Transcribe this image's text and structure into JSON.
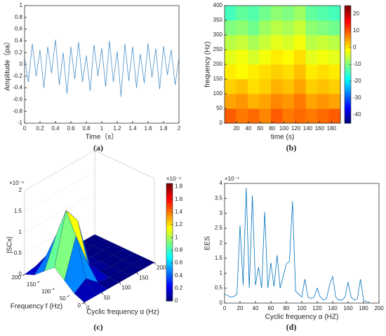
{
  "chart_data": [
    {
      "type": "line",
      "caption": "(a)",
      "xlabel": "Time（s）",
      "ylabel": "Amplitude（pa）",
      "color": "#4a90c8",
      "x": [
        0,
        0.05,
        0.1,
        0.15,
        0.2,
        0.25,
        0.3,
        0.35,
        0.4,
        0.45,
        0.5,
        0.55,
        0.6,
        0.65,
        0.7,
        0.75,
        0.8,
        0.85,
        0.9,
        0.95,
        1,
        1.05,
        1.1,
        1.15,
        1.2,
        1.25,
        1.3,
        1.35,
        1.4,
        1.45,
        1.5,
        1.55,
        1.6,
        1.65,
        1.7,
        1.75,
        1.8,
        1.85,
        1.9,
        1.95,
        2
      ],
      "values": [
        0.1,
        -0.3,
        0.35,
        -0.2,
        0.25,
        -0.4,
        0.3,
        -0.15,
        0.42,
        -0.35,
        0.2,
        -0.5,
        0.3,
        -0.25,
        0.38,
        -0.3,
        0.15,
        -0.45,
        0.33,
        -0.2,
        0.28,
        -0.38,
        0.4,
        -0.3,
        0.22,
        -0.55,
        0.35,
        -0.28,
        0.3,
        -0.4,
        0.18,
        -0.32,
        0.36,
        -0.22,
        0.27,
        -0.42,
        0.31,
        -0.18,
        0.25,
        -0.35,
        0.1
      ],
      "xlim": [
        0,
        2
      ],
      "xticks": [
        0,
        0.2,
        0.4,
        0.6,
        0.8,
        1,
        1.2,
        1.4,
        1.6,
        1.8,
        2
      ],
      "ylim": [
        -1,
        1
      ],
      "yticks": [
        -1,
        -0.8,
        -0.6,
        -0.4,
        -0.2,
        0,
        0.2,
        0.4,
        0.6,
        0.8,
        1
      ]
    },
    {
      "type": "heatmap",
      "caption": "(b)",
      "xlabel": "time (s)",
      "ylabel": "frequency (Hz)",
      "values": [
        [
          10,
          8,
          9,
          7,
          10,
          8,
          9,
          8,
          9,
          10
        ],
        [
          5,
          6,
          4,
          5,
          7,
          6,
          8,
          5,
          6,
          5
        ],
        [
          2,
          3,
          1,
          2,
          4,
          3,
          5,
          2,
          3,
          2
        ],
        [
          0,
          -1,
          0,
          1,
          2,
          1,
          3,
          0,
          1,
          0
        ],
        [
          -3,
          -2,
          -4,
          -2,
          0,
          -1,
          1,
          -3,
          -2,
          -3
        ],
        [
          -6,
          -5,
          -7,
          -5,
          -3,
          -4,
          -2,
          -6,
          -5,
          -6
        ],
        [
          -10,
          -9,
          -11,
          -8,
          -6,
          -7,
          -5,
          -9,
          -10,
          -11
        ],
        [
          -14,
          -12,
          -13,
          -11,
          -9,
          -10,
          -8,
          -12,
          -13,
          -14
        ]
      ],
      "xlim": [
        0,
        195
      ],
      "xticks": [
        20,
        40,
        60,
        80,
        100,
        120,
        140,
        160,
        180
      ],
      "ylim": [
        0,
        400
      ],
      "yticks": [
        0,
        50,
        100,
        150,
        200,
        250,
        300,
        350,
        400
      ],
      "clim": [
        -45,
        25
      ],
      "cticks": [
        -40,
        -30,
        -20,
        -10,
        0,
        10,
        20
      ]
    },
    {
      "type": "surface3d",
      "caption": "(c)",
      "xlabel": "Cyclic frequency α (Hz)",
      "ylabel": "Frequency f (Hz)",
      "zlabel": "|SCx|",
      "multiplier": "×10⁻⁴",
      "colorbar_multiplier": "×10⁻⁴",
      "values": [
        [
          0,
          0,
          0,
          0,
          0,
          0,
          0
        ],
        [
          0.1,
          0.3,
          0.05,
          0,
          0,
          0,
          0
        ],
        [
          0.3,
          1.2,
          0.4,
          0.05,
          0,
          0,
          0
        ],
        [
          0.5,
          1.7,
          1.3,
          0.1,
          0,
          0,
          0
        ],
        [
          0.3,
          1,
          1.4,
          0.1,
          0,
          0,
          0
        ],
        [
          0.1,
          0.4,
          0.3,
          0.02,
          0,
          0,
          0
        ],
        [
          0,
          0.05,
          0,
          0,
          0,
          0,
          0
        ]
      ],
      "xlim": [
        0,
        200
      ],
      "xticks": [
        0,
        50,
        100,
        150,
        200
      ],
      "ylim": [
        0,
        200
      ],
      "yticks": [
        0,
        50,
        100,
        150,
        200
      ],
      "zlim": [
        0,
        2
      ],
      "zticks": [
        0,
        0.5,
        1,
        1.5,
        2
      ],
      "clim": [
        0,
        1.85
      ],
      "cticks": [
        0,
        0.2,
        0.4,
        0.6,
        0.8,
        1,
        1.2,
        1.4,
        1.6,
        1.8
      ]
    },
    {
      "type": "line",
      "caption": "(d)",
      "xlabel": "Cyclic frequency α (HZ)",
      "ylabel": "EES",
      "multiplier": "×10⁻⁴",
      "color": "#0072bd",
      "x": [
        0,
        4,
        8,
        12,
        16,
        20,
        24,
        28,
        32,
        36,
        40,
        44,
        48,
        52,
        56,
        60,
        64,
        68,
        72,
        76,
        80,
        84,
        88,
        92,
        96,
        100,
        104,
        108,
        112,
        116,
        120,
        124,
        128,
        132,
        136,
        140,
        144,
        148,
        152,
        156,
        160,
        164,
        168,
        172,
        176,
        180,
        184,
        188
      ],
      "values": [
        0.3,
        0.25,
        0.2,
        0.22,
        0.3,
        2.6,
        0.6,
        3.85,
        0.5,
        3.6,
        0.6,
        1.2,
        0.5,
        3.05,
        0.5,
        1.35,
        0.55,
        1.6,
        0.5,
        0.9,
        1.3,
        1.4,
        3.4,
        0.4,
        0.3,
        0.2,
        0.8,
        0.2,
        0.15,
        0.2,
        0.5,
        0.2,
        0.1,
        0.15,
        0.6,
        0.9,
        0.2,
        0.1,
        0.1,
        0.2,
        0.7,
        0.2,
        0.1,
        0.15,
        0.8,
        0.1,
        0.05,
        0.02
      ],
      "xlim": [
        0,
        200
      ],
      "xticks": [
        0,
        20,
        40,
        60,
        80,
        100,
        120,
        140,
        160,
        180,
        200
      ],
      "ylim": [
        0,
        4
      ],
      "yticks": [
        0,
        0.5,
        1,
        1.5,
        2,
        2.5,
        3,
        3.5,
        4
      ]
    }
  ]
}
